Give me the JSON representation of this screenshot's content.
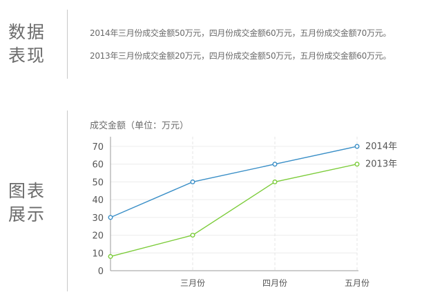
{
  "data_section": {
    "title_line1": "数据",
    "title_line2": "表现",
    "desc_2014": "2014年三月份成交金额50万元，四月份成交金额60万元，五月份成交金额70万元。",
    "desc_2013": "2013年三月份成交金额20万元，四月份成交金额50万元，五月份成交金额60万元。"
  },
  "chart_section": {
    "title_line1": "图表",
    "title_line2": "展示"
  },
  "chart_data": {
    "type": "line",
    "title": "成交金额（单位：万元）",
    "xlabel": "",
    "ylabel": "",
    "categories": [
      "",
      "三月份",
      "四月份",
      "五月份"
    ],
    "ylim": [
      0,
      70
    ],
    "yticks": [
      0,
      10,
      20,
      30,
      40,
      50,
      60,
      70
    ],
    "grid": true,
    "series": [
      {
        "name": "2014年",
        "values": [
          30,
          50,
          60,
          70
        ],
        "color": "#3a8fc7"
      },
      {
        "name": "2013年",
        "values": [
          8,
          20,
          50,
          60
        ],
        "color": "#7ccc3a"
      }
    ]
  }
}
